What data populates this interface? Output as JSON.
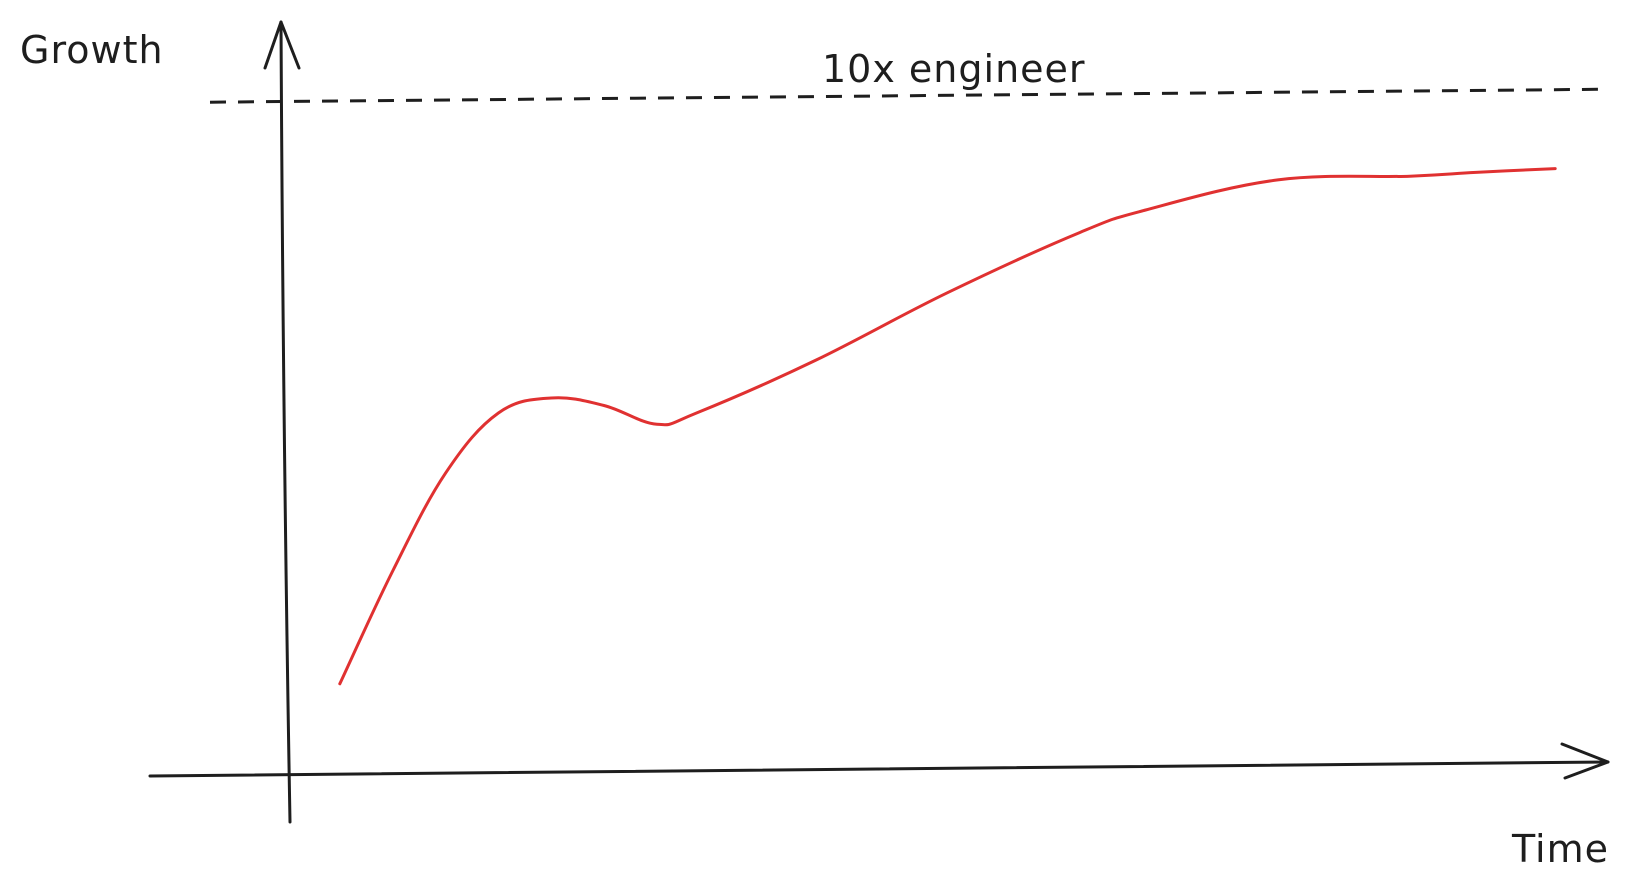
{
  "chart_data": {
    "type": "line",
    "title": "",
    "xlabel": "Time",
    "ylabel": "Growth",
    "xlim": [
      0,
      100
    ],
    "ylim": [
      0,
      100
    ],
    "grid": false,
    "legend": "none",
    "reference_line": {
      "label": "10x engineer",
      "y": 90,
      "style": "dashed",
      "color": "#1e1e1e"
    },
    "series": [
      {
        "color": "#e03131",
        "x": [
          4,
          8,
          12,
          16,
          20,
          24,
          28,
          31,
          40,
          50,
          60,
          65,
          75,
          85,
          90,
          96
        ],
        "y": [
          12,
          27,
          40,
          48,
          50,
          49,
          46.5,
          48,
          55,
          64,
          72,
          75,
          79,
          79.5,
          80,
          80.5
        ]
      }
    ]
  }
}
